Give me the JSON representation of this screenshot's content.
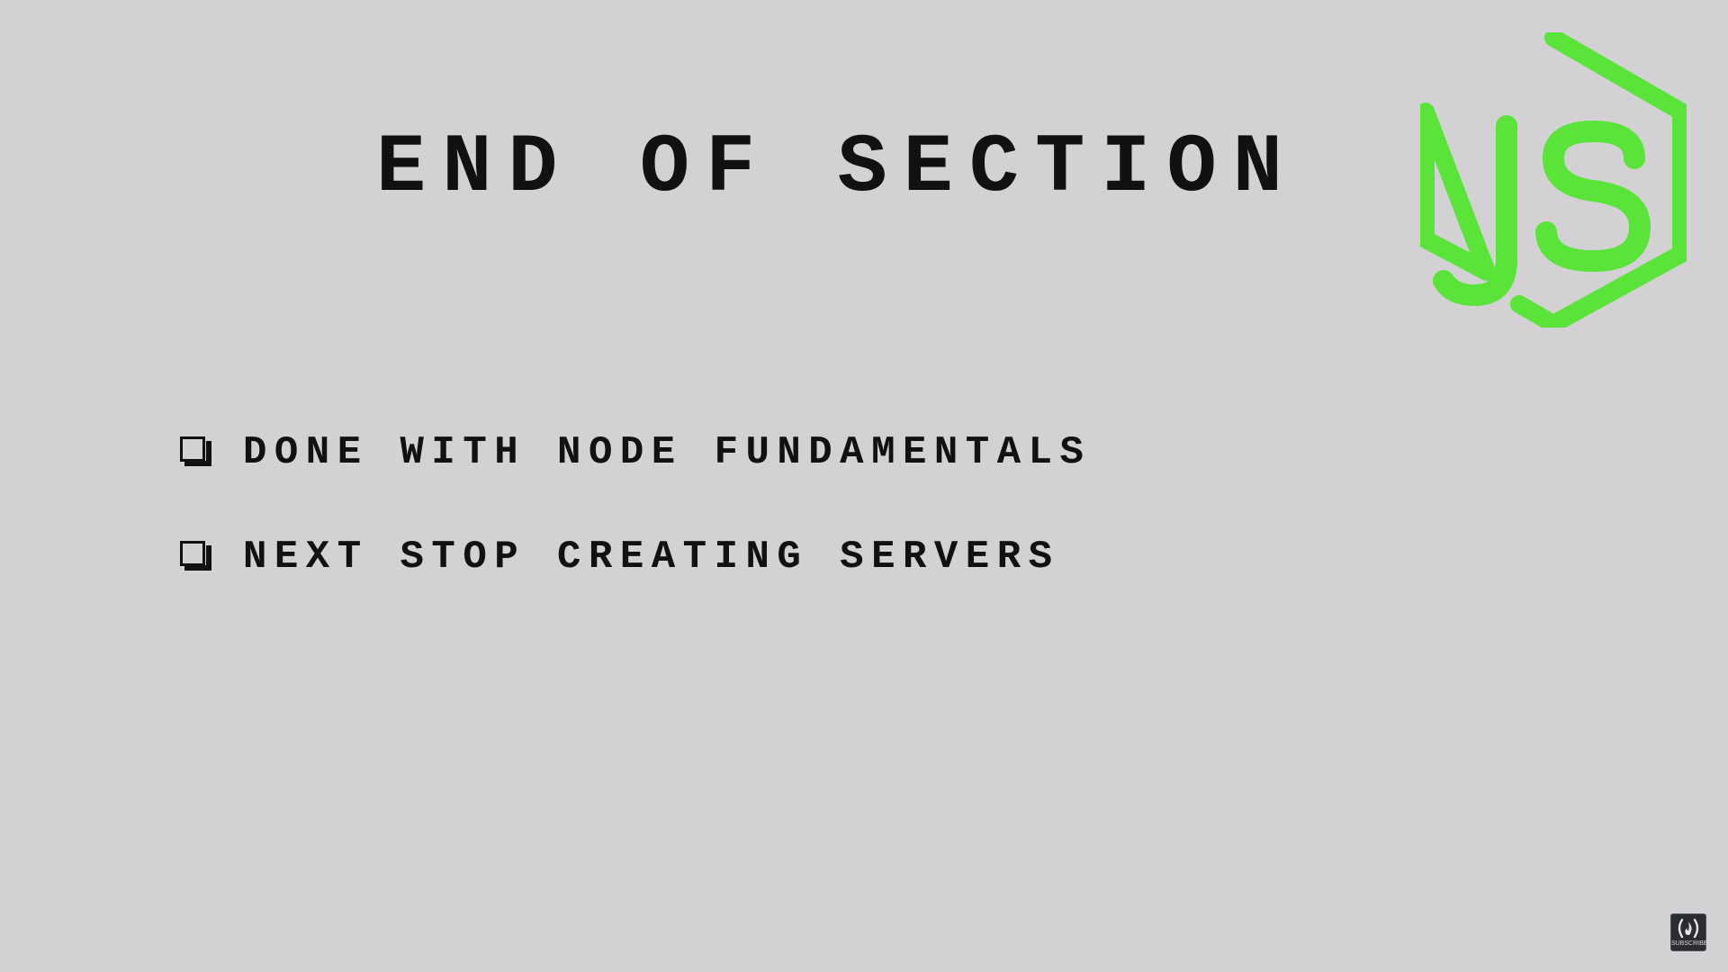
{
  "slide": {
    "title": "END OF SECTION",
    "bullets": [
      "DONE WITH NODE FUNDAMENTALS",
      "NEXT STOP CREATING SERVERS"
    ]
  },
  "logo": {
    "icon": "nodejs-logo-icon",
    "text": "JS",
    "color": "#5ae43a"
  },
  "subscribe_badge": {
    "icon": "freecodecamp-flame-icon",
    "label": "SUBSCRIBE"
  },
  "colors": {
    "background": "#d3d1d4",
    "text": "#111111",
    "accent": "#5ae43a"
  }
}
